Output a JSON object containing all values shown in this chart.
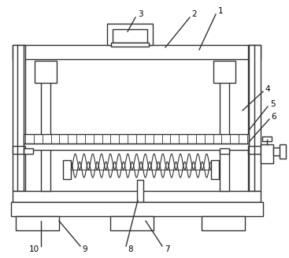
{
  "bg_color": "#ffffff",
  "line_color": "#333333",
  "lw": 1.0,
  "fig_w": 3.67,
  "fig_h": 3.27,
  "dpi": 100
}
